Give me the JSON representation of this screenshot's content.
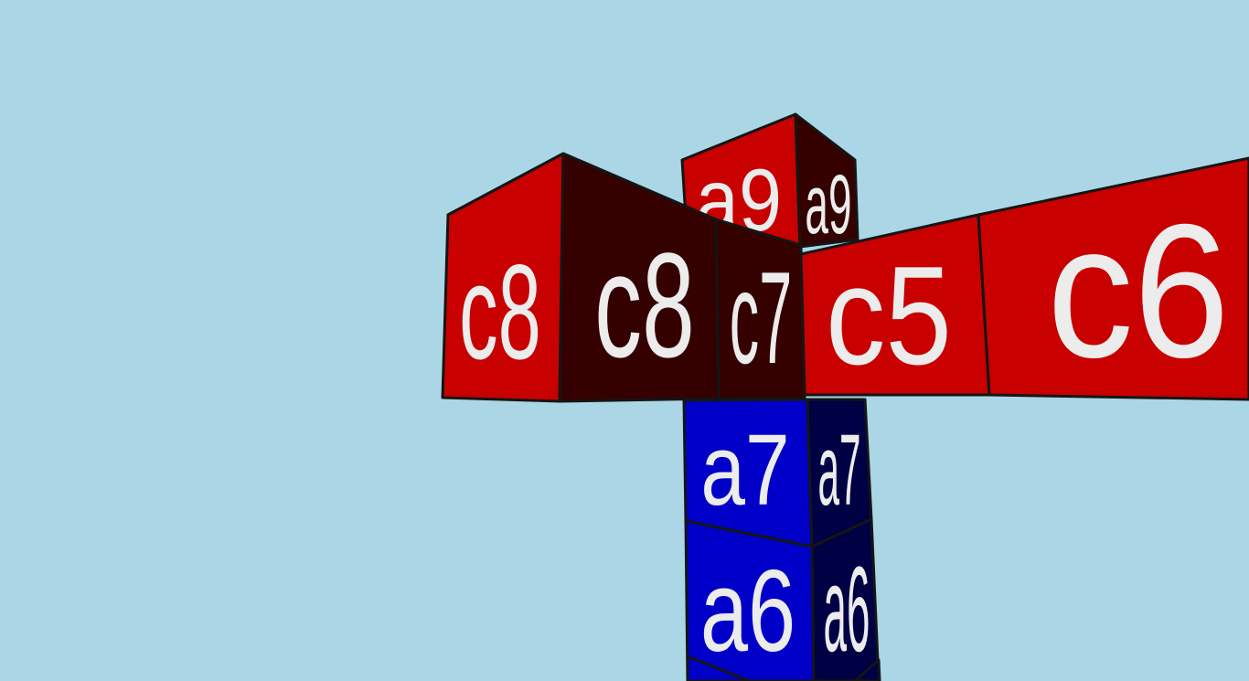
{
  "colors": {
    "sky": "#abd6e6",
    "red_front": "#c80000",
    "red_side": "#340000",
    "blue_front": "#0000c8",
    "blue_side": "#000045",
    "label": "#ececec",
    "edge": "#151515"
  },
  "blocks": {
    "a9": {
      "front_label": "a9",
      "side_label": "a9"
    },
    "c8": {
      "front_label": "c8",
      "side_label": "c8"
    },
    "c7": {
      "side_label": "c7"
    },
    "c5": {
      "front_label": "c5"
    },
    "c6": {
      "front_label": "c6"
    },
    "a7": {
      "front_label": "a7",
      "side_label": "a7"
    },
    "a6": {
      "front_label": "a6",
      "side_label": "a6"
    },
    "a5": {}
  }
}
